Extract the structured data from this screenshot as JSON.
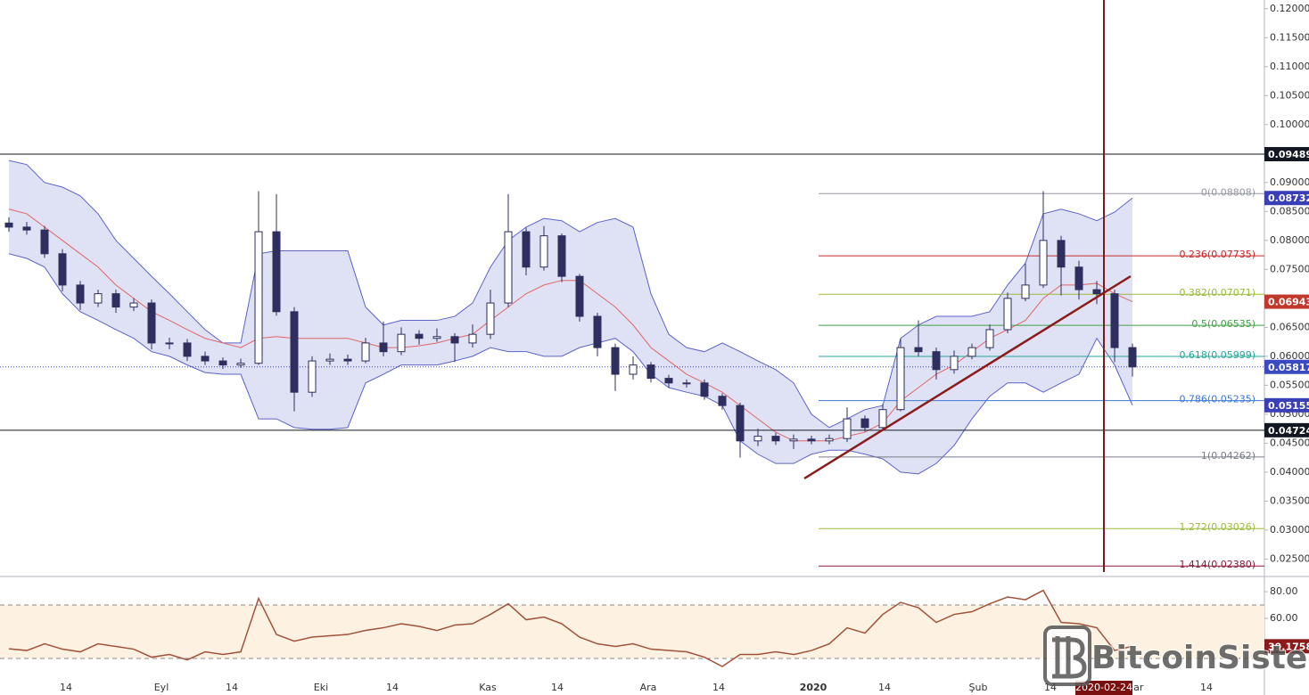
{
  "chart_data": [
    {
      "type": "candlestick",
      "ylim": [
        0.0223,
        0.1215
      ],
      "yticks": [
        {
          "value": 0.12,
          "label": "0.12000"
        },
        {
          "value": 0.115,
          "label": "0.11500"
        },
        {
          "value": 0.11,
          "label": "0.11000"
        },
        {
          "value": 0.105,
          "label": "0.10500"
        },
        {
          "value": 0.1,
          "label": "0.10000"
        },
        {
          "value": 0.09,
          "label": "0.09000"
        },
        {
          "value": 0.085,
          "label": "0.08500"
        },
        {
          "value": 0.08,
          "label": "0.08000"
        },
        {
          "value": 0.075,
          "label": "0.07500"
        },
        {
          "value": 0.065,
          "label": "0.06500"
        },
        {
          "value": 0.06,
          "label": "0.06000"
        },
        {
          "value": 0.055,
          "label": "0.05500"
        },
        {
          "value": 0.05,
          "label": "0.05000"
        },
        {
          "value": 0.045,
          "label": "0.04500"
        },
        {
          "value": 0.04,
          "label": "0.04000"
        },
        {
          "value": 0.035,
          "label": "0.03500"
        },
        {
          "value": 0.03,
          "label": "0.03000"
        },
        {
          "value": 0.025,
          "label": "0.02500"
        }
      ],
      "x_labels": [
        "14",
        "Eyl",
        "14",
        "Eki",
        "14",
        "Kas",
        "14",
        "Ara",
        "14",
        "2020",
        "14",
        "Şub",
        "14",
        "Mar",
        "14"
      ],
      "crosshair_date": "2020-02-24",
      "up_color": "#ffffff",
      "down_color": "#2e2f5e",
      "open": [
        0.083,
        0.0823,
        0.0818,
        0.0777,
        0.0723,
        0.0692,
        0.0708,
        0.0685,
        0.0692,
        0.0623,
        0.0623,
        0.06,
        0.0592,
        0.0585,
        0.0588,
        0.0815,
        0.0677,
        0.0538,
        0.0592,
        0.0595,
        0.0592,
        0.0623,
        0.0608,
        0.0638,
        0.0631,
        0.0634,
        0.0623,
        0.0638,
        0.0692,
        0.0815,
        0.0754,
        0.0808,
        0.0738,
        0.0669,
        0.0615,
        0.0569,
        0.0585,
        0.0562,
        0.0554,
        0.0554,
        0.0531,
        0.0515,
        0.0454,
        0.0462,
        0.0454,
        0.0457,
        0.0454,
        0.0458,
        0.0492,
        0.0477,
        0.0508,
        0.0615,
        0.0608,
        0.0577,
        0.06,
        0.0615,
        0.0646,
        0.07,
        0.0723,
        0.08,
        0.0754,
        0.0715,
        0.0708,
        0.0615
      ],
      "high": [
        0.084,
        0.0832,
        0.0825,
        0.0785,
        0.073,
        0.0715,
        0.0715,
        0.07,
        0.0698,
        0.0632,
        0.063,
        0.0608,
        0.0598,
        0.0596,
        0.0885,
        0.088,
        0.0685,
        0.06,
        0.0605,
        0.0603,
        0.0632,
        0.066,
        0.065,
        0.0645,
        0.0648,
        0.064,
        0.0655,
        0.0715,
        0.088,
        0.0822,
        0.0825,
        0.0812,
        0.0742,
        0.0675,
        0.0622,
        0.06,
        0.059,
        0.0568,
        0.056,
        0.056,
        0.0536,
        0.052,
        0.0475,
        0.0468,
        0.0465,
        0.0463,
        0.0465,
        0.0512,
        0.0498,
        0.0518,
        0.063,
        0.0662,
        0.0615,
        0.061,
        0.0622,
        0.0655,
        0.071,
        0.076,
        0.0885,
        0.0808,
        0.0765,
        0.073,
        0.0715,
        0.0622
      ],
      "low": [
        0.0815,
        0.081,
        0.077,
        0.0712,
        0.068,
        0.0685,
        0.0675,
        0.0678,
        0.0612,
        0.0612,
        0.0592,
        0.0585,
        0.0578,
        0.058,
        0.0585,
        0.067,
        0.0505,
        0.053,
        0.0585,
        0.0585,
        0.0588,
        0.06,
        0.0602,
        0.062,
        0.0625,
        0.059,
        0.0615,
        0.063,
        0.0685,
        0.074,
        0.0748,
        0.0728,
        0.066,
        0.06,
        0.054,
        0.056,
        0.0555,
        0.0546,
        0.0546,
        0.0525,
        0.0508,
        0.0425,
        0.0445,
        0.0447,
        0.044,
        0.0448,
        0.0448,
        0.0452,
        0.047,
        0.0472,
        0.0505,
        0.06,
        0.056,
        0.057,
        0.0595,
        0.061,
        0.064,
        0.0695,
        0.0718,
        0.0705,
        0.0698,
        0.069,
        0.059,
        0.0565
      ],
      "close": [
        0.0823,
        0.0818,
        0.0777,
        0.0723,
        0.0692,
        0.0708,
        0.0685,
        0.0692,
        0.0623,
        0.0623,
        0.06,
        0.0592,
        0.0585,
        0.0588,
        0.0815,
        0.0677,
        0.0538,
        0.0592,
        0.0595,
        0.0592,
        0.0623,
        0.0608,
        0.0638,
        0.0631,
        0.0634,
        0.0623,
        0.0638,
        0.0692,
        0.0815,
        0.0754,
        0.0808,
        0.0738,
        0.0669,
        0.0615,
        0.0569,
        0.0585,
        0.0562,
        0.0554,
        0.0554,
        0.0531,
        0.0515,
        0.0454,
        0.0462,
        0.0454,
        0.0457,
        0.0454,
        0.0458,
        0.0492,
        0.0477,
        0.0508,
        0.0615,
        0.0608,
        0.0577,
        0.06,
        0.0615,
        0.0646,
        0.07,
        0.0723,
        0.08,
        0.0754,
        0.0715,
        0.0708,
        0.0615,
        0.05817
      ],
      "bands": {
        "upper": [
          0.0938,
          0.0931,
          0.09,
          0.0892,
          0.0877,
          0.0846,
          0.08,
          0.0769,
          0.0738,
          0.0708,
          0.0677,
          0.0646,
          0.0623,
          0.0623,
          0.0777,
          0.0782,
          0.0782,
          0.0782,
          0.0782,
          0.0782,
          0.0685,
          0.0654,
          0.0662,
          0.0662,
          0.0662,
          0.0669,
          0.0692,
          0.0754,
          0.08,
          0.0823,
          0.0838,
          0.0834,
          0.0815,
          0.0831,
          0.0838,
          0.0823,
          0.0708,
          0.0638,
          0.0615,
          0.0608,
          0.0623,
          0.0608,
          0.0592,
          0.0577,
          0.0554,
          0.05,
          0.0477,
          0.0492,
          0.0508,
          0.0515,
          0.0631,
          0.0654,
          0.0669,
          0.0669,
          0.0669,
          0.0677,
          0.0723,
          0.0761,
          0.0846,
          0.0854,
          0.0846,
          0.0834,
          0.0849,
          0.08732
        ],
        "middle": [
          0.0854,
          0.0846,
          0.0823,
          0.08,
          0.0777,
          0.0754,
          0.0723,
          0.07,
          0.0677,
          0.0662,
          0.0646,
          0.0631,
          0.0623,
          0.0615,
          0.0631,
          0.0634,
          0.0631,
          0.0631,
          0.0631,
          0.0631,
          0.0623,
          0.0615,
          0.0615,
          0.0618,
          0.0623,
          0.0631,
          0.0638,
          0.0662,
          0.0685,
          0.0708,
          0.0723,
          0.0731,
          0.0731,
          0.0708,
          0.0685,
          0.0654,
          0.0615,
          0.0592,
          0.0569,
          0.0554,
          0.0538,
          0.0515,
          0.0492,
          0.0469,
          0.0454,
          0.0454,
          0.0454,
          0.0462,
          0.0469,
          0.0485,
          0.0523,
          0.0546,
          0.0569,
          0.0585,
          0.0608,
          0.0631,
          0.0646,
          0.0662,
          0.07,
          0.0723,
          0.0723,
          0.0726,
          0.0708,
          0.06943
        ],
        "lower": [
          0.0777,
          0.0769,
          0.0754,
          0.0708,
          0.0677,
          0.0662,
          0.0646,
          0.0631,
          0.0608,
          0.06,
          0.0585,
          0.0572,
          0.0569,
          0.0569,
          0.0492,
          0.0492,
          0.0477,
          0.0474,
          0.0474,
          0.0477,
          0.0554,
          0.0569,
          0.0585,
          0.0585,
          0.0585,
          0.0592,
          0.06,
          0.0615,
          0.0608,
          0.0608,
          0.06,
          0.06,
          0.0615,
          0.0623,
          0.0631,
          0.0608,
          0.0569,
          0.0546,
          0.0538,
          0.0531,
          0.0515,
          0.0454,
          0.0431,
          0.0415,
          0.0415,
          0.0431,
          0.0438,
          0.0438,
          0.0431,
          0.0423,
          0.04,
          0.0397,
          0.0415,
          0.0446,
          0.0492,
          0.0531,
          0.0554,
          0.0554,
          0.0538,
          0.0554,
          0.0569,
          0.0631,
          0.0585,
          0.05155
        ],
        "upper_color": "#5c63c8",
        "middle_color": "#e06666",
        "lower_color": "#5c63c8",
        "fill": "#dcdef3"
      },
      "hlines": [
        0.09489,
        0.04724
      ],
      "fib_levels": [
        {
          "label": "0(0.08808)",
          "value": 0.08808,
          "color": "#9598a1"
        },
        {
          "label": "0.236(0.07735)",
          "value": 0.07735,
          "color": "#c62828"
        },
        {
          "label": "0.382(0.07071)",
          "value": 0.07071,
          "color": "#9cba3e"
        },
        {
          "label": "0.5(0.06535)",
          "value": 0.06535,
          "color": "#43a047"
        },
        {
          "label": "0.618(0.05999)",
          "value": 0.05999,
          "color": "#26a69a"
        },
        {
          "label": "0.786(0.05235)",
          "value": 0.05235,
          "color": "#3c78d8"
        },
        {
          "label": "1(0.04262)",
          "value": 0.04262,
          "color": "#787b86"
        },
        {
          "label": "1.272(0.03026)",
          "value": 0.03026,
          "color": "#9cba3e"
        },
        {
          "label": "1.414(0.02380)",
          "value": 0.0238,
          "color": "#8b1a3a"
        }
      ]
    },
    {
      "type": "line",
      "ylim": [
        14.7,
        90.7
      ],
      "yticks": [
        {
          "value": 80,
          "label": "80.00"
        },
        {
          "value": 60,
          "label": "60.00"
        }
      ],
      "levels": [
        70,
        30
      ],
      "color": "#a0523a",
      "values": [
        37.3,
        36,
        41,
        37,
        35,
        41,
        39,
        37,
        31,
        33,
        29,
        35,
        33,
        35,
        75,
        48,
        43,
        46,
        47,
        48,
        51,
        53,
        56,
        54,
        51,
        55,
        56,
        63,
        71,
        59,
        61,
        56,
        46,
        41,
        39,
        41,
        37,
        36,
        35,
        31,
        24,
        33,
        33,
        35,
        33,
        36,
        41,
        53,
        49,
        63,
        72,
        68,
        57,
        63,
        65,
        71,
        76,
        74,
        81,
        57,
        56,
        53,
        36,
        39.1758
      ]
    }
  ],
  "watermark": "BitcoinSistemi"
}
